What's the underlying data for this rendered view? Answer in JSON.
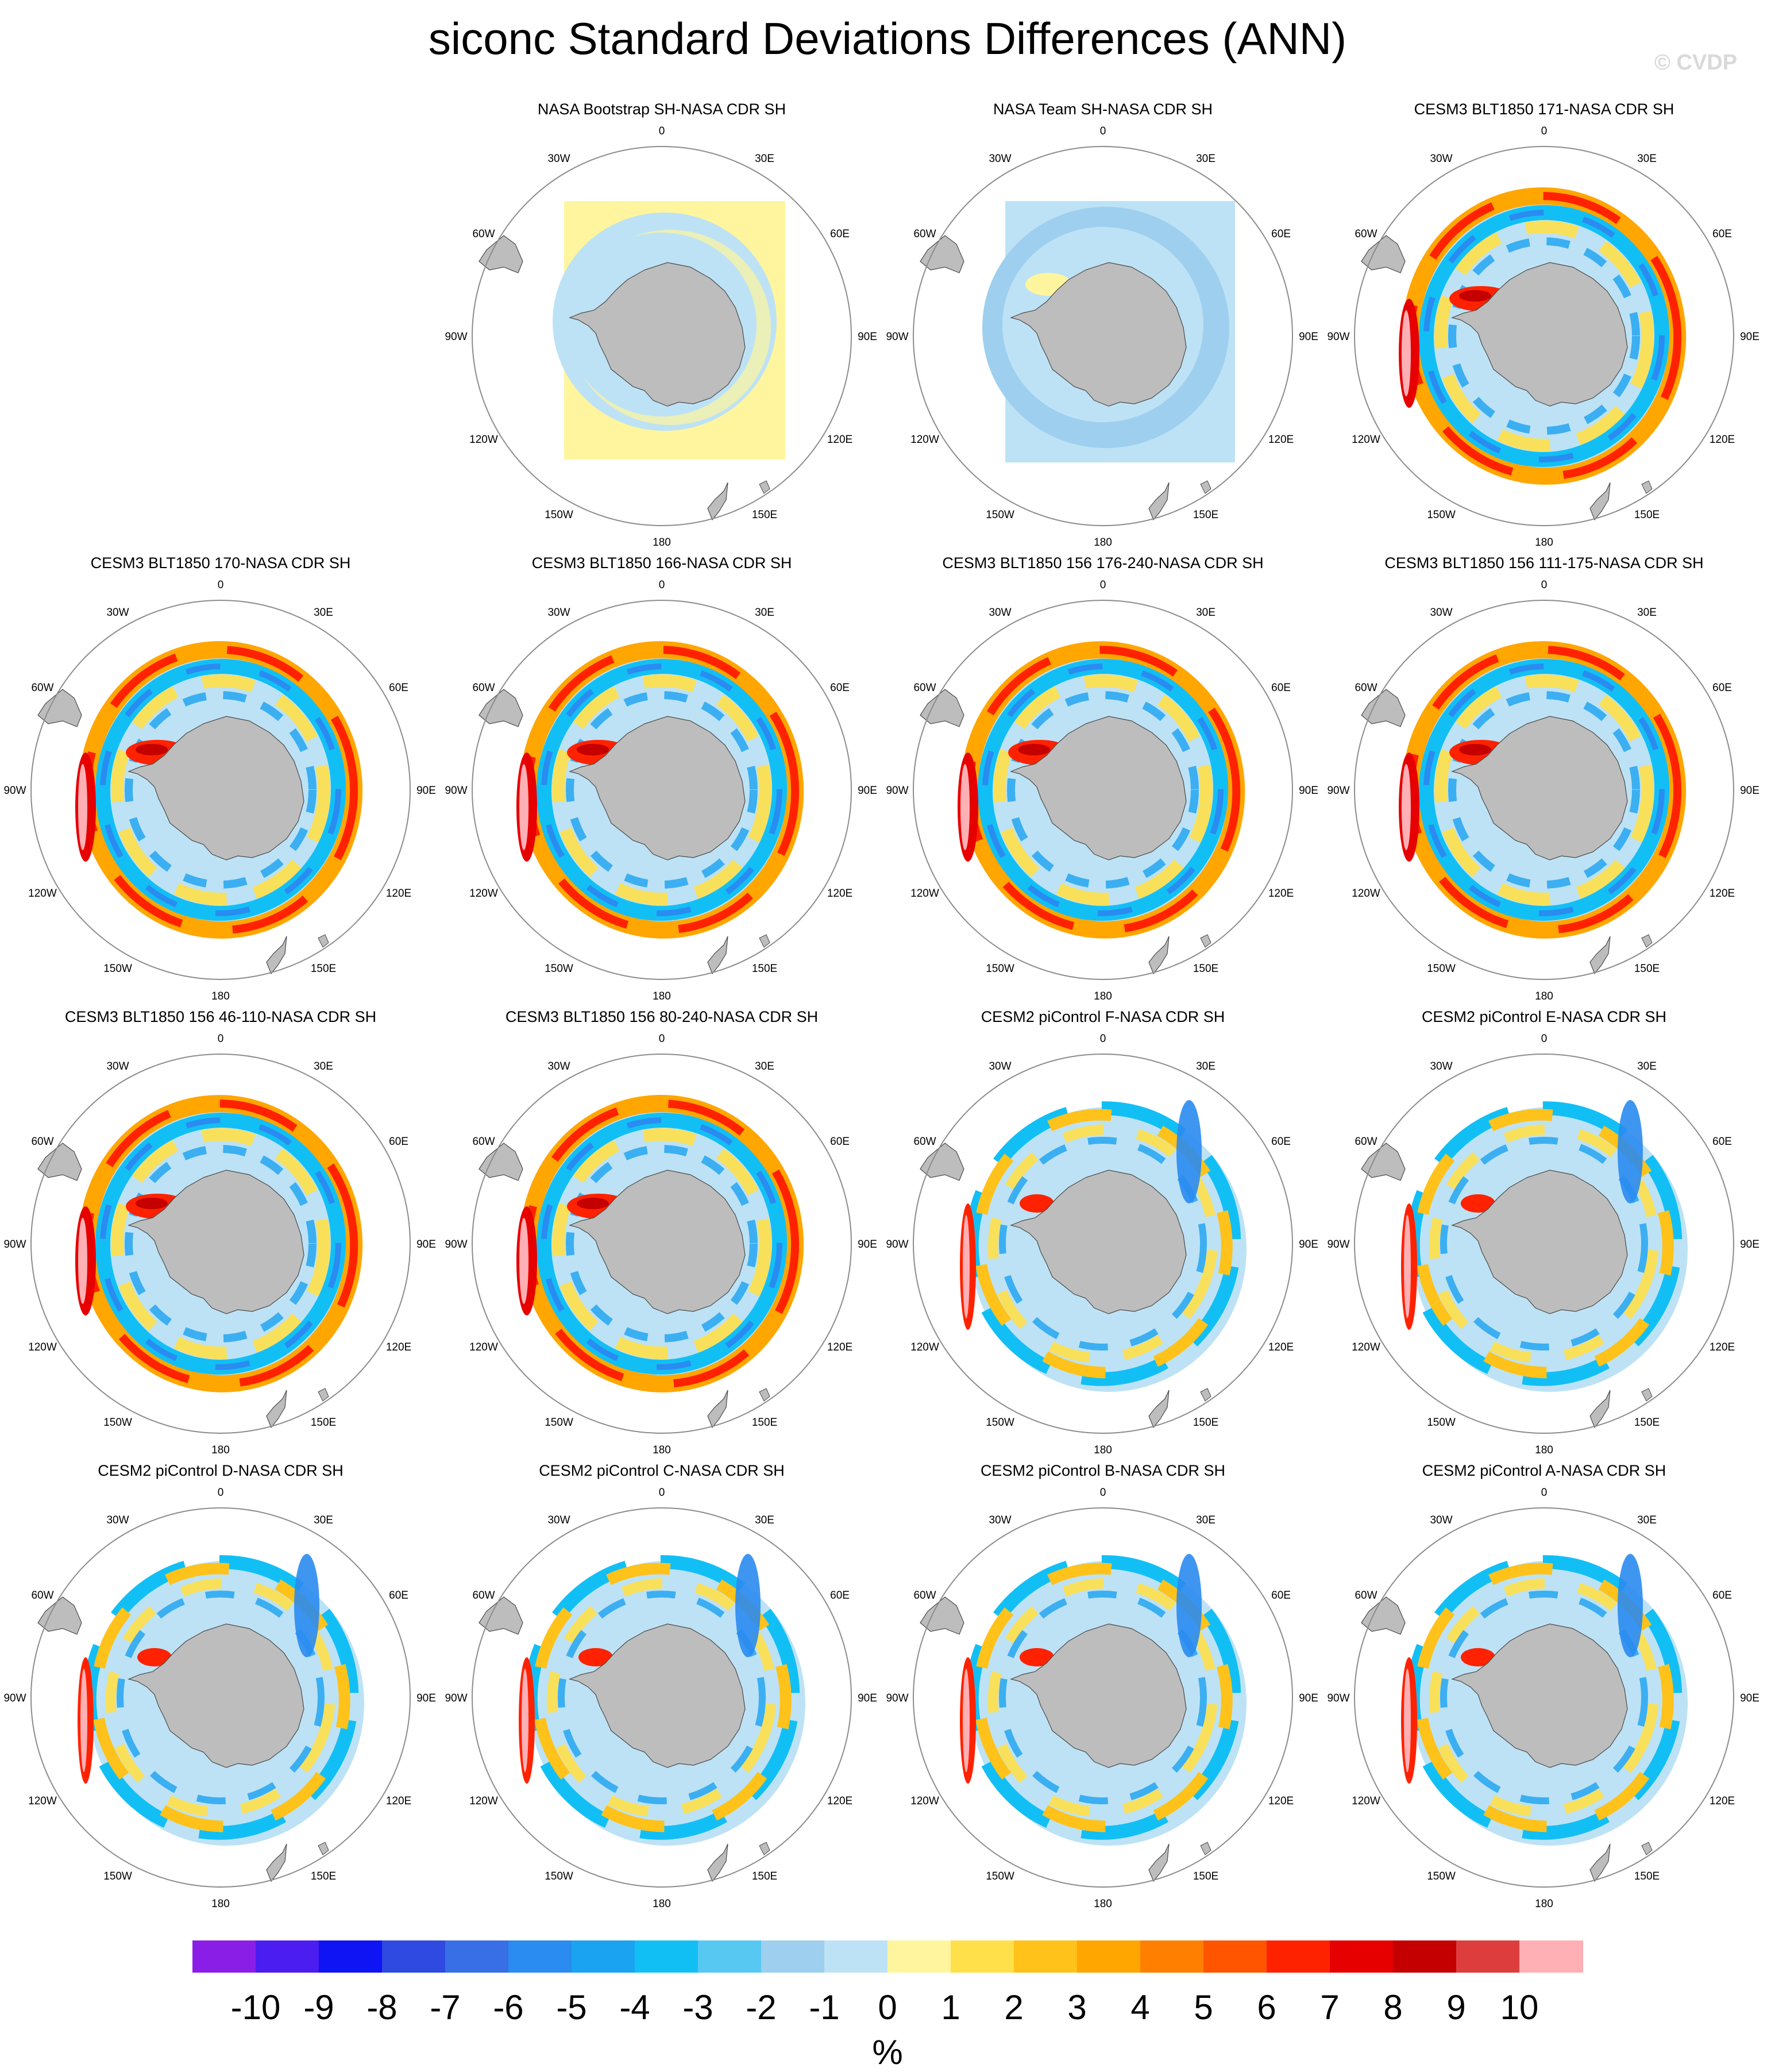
{
  "title": "siconc Standard Deviations Differences (ANN)",
  "watermark": "© CVDP",
  "units": "%",
  "lon_labels": {
    "l0": "0",
    "l30e": "30E",
    "l60e": "60E",
    "l90e": "90E",
    "l120e": "120E",
    "l150e": "150E",
    "l180": "180",
    "l150w": "150W",
    "l120w": "120W",
    "l90w": "90W",
    "l60w": "60W",
    "l30w": "30W"
  },
  "panels": [
    {
      "title": "NASA Bootstrap SH-NASA CDR SH",
      "style": "obs_warm"
    },
    {
      "title": "NASA Team SH-NASA CDR SH",
      "style": "obs_cool"
    },
    {
      "title": "CESM3 BLT1850 171-NASA CDR SH",
      "style": "cesm3"
    },
    {
      "title": "CESM3 BLT1850 170-NASA CDR SH",
      "style": "cesm3"
    },
    {
      "title": "CESM3 BLT1850 166-NASA CDR SH",
      "style": "cesm3"
    },
    {
      "title": "CESM3 BLT1850 156 176-240-NASA CDR SH",
      "style": "cesm3"
    },
    {
      "title": "CESM3 BLT1850 156 111-175-NASA CDR SH",
      "style": "cesm3"
    },
    {
      "title": "CESM3 BLT1850 156 46-110-NASA CDR SH",
      "style": "cesm3"
    },
    {
      "title": "CESM3 BLT1850 156 80-240-NASA CDR SH",
      "style": "cesm3"
    },
    {
      "title": "CESM2 piControl F-NASA CDR SH",
      "style": "cesm2"
    },
    {
      "title": "CESM2 piControl E-NASA CDR SH",
      "style": "cesm2"
    },
    {
      "title": "CESM2 piControl D-NASA CDR SH",
      "style": "cesm2"
    },
    {
      "title": "CESM2 piControl C-NASA CDR SH",
      "style": "cesm2"
    },
    {
      "title": "CESM2 piControl B-NASA CDR SH",
      "style": "cesm2"
    },
    {
      "title": "CESM2 piControl A-NASA CDR SH",
      "style": "cesm2"
    }
  ],
  "colorbar": {
    "labels": [
      "-10",
      "-9",
      "-8",
      "-7",
      "-6",
      "-5",
      "-4",
      "-3",
      "-2",
      "-1",
      "0",
      "1",
      "2",
      "3",
      "4",
      "5",
      "6",
      "7",
      "8",
      "9",
      "10"
    ],
    "colors": [
      "#8a1ee6",
      "#4b1df0",
      "#0f14f5",
      "#2e4ae0",
      "#386ee6",
      "#2a8bf0",
      "#1aa3f0",
      "#12bff5",
      "#56c8f2",
      "#9ecfee",
      "#bde2f5",
      "#fff59e",
      "#ffe04a",
      "#ffc21a",
      "#ffa600",
      "#ff8000",
      "#ff5500",
      "#ff2200",
      "#e60000",
      "#c40000",
      "#dd3d3d",
      "#ffb0b5"
    ]
  },
  "chart_data": {
    "type": "heatmap",
    "projection": "south polar stereographic",
    "variable": "siconc",
    "season": "ANN",
    "title": "siconc Standard Deviations Differences (ANN)",
    "units": "%",
    "levels": [
      -10,
      -9,
      -8,
      -7,
      -6,
      -5,
      -4,
      -3,
      -2,
      -1,
      0,
      1,
      2,
      3,
      4,
      5,
      6,
      7,
      8,
      9,
      10
    ],
    "panel_count": 15,
    "layout": "4 rows x 4 columns, first cell empty"
  }
}
